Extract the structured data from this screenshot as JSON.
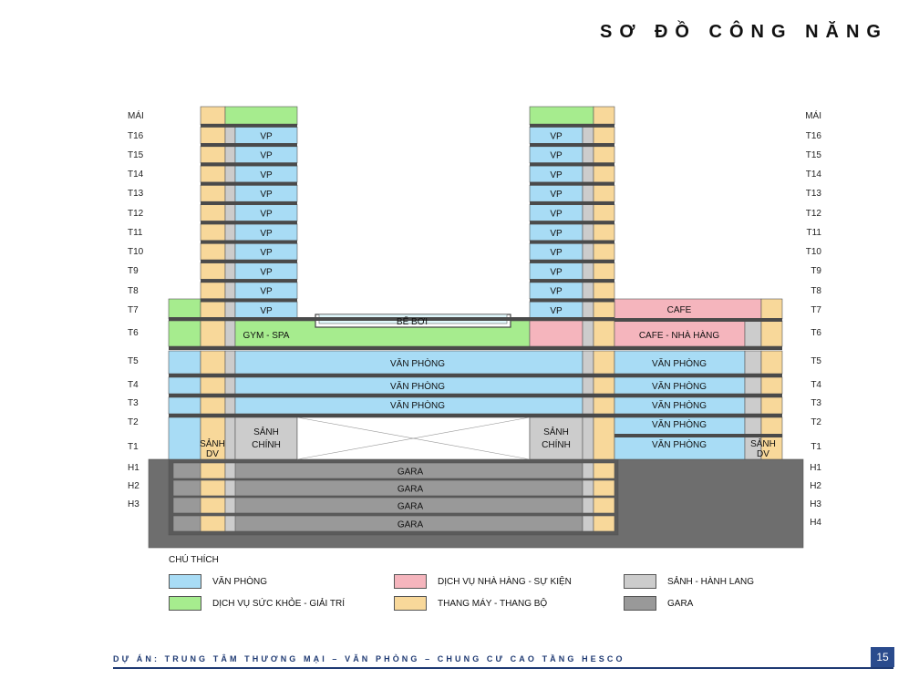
{
  "title": "SƠ ĐỒ CÔNG NĂNG",
  "floor_labels_left": [
    "MÁI",
    "T16",
    "T15",
    "T14",
    "T13",
    "T12",
    "T11",
    "T10",
    "T9",
    "T8",
    "T7",
    "T6",
    "T5",
    "T4",
    "T3",
    "T2",
    "T1",
    "H1",
    "H2",
    "H3"
  ],
  "floor_labels_right": [
    "MÁI",
    "T16",
    "T15",
    "T14",
    "T13",
    "T12",
    "T11",
    "T10",
    "T9",
    "T8",
    "T7",
    "T6",
    "T5",
    "T4",
    "T3",
    "T2",
    "T1",
    "H1",
    "H2",
    "H3",
    "H4"
  ],
  "spaces": {
    "vp": "VP",
    "gym_spa": "GYM - SPA",
    "pool": "BỂ BƠI",
    "van_phong": "VĂN PHÒNG",
    "cafe": "CAFE",
    "cafe_restaurant": "CAFE - NHÀ HÀNG",
    "main_lobby_line1": "SẢNH",
    "main_lobby_line2": "CHÍNH",
    "service_lobby_line1": "SẢNH",
    "service_lobby_line2": "DV",
    "gara": "GARA"
  },
  "colors": {
    "office": "#a8dcf5",
    "health": "#a6ec8e",
    "restaurant": "#f5b5bd",
    "lobby": "#cccccc",
    "core": "#f8d89a",
    "gara": "#999999"
  },
  "legend": {
    "title": "CHÚ THÍCH",
    "items": [
      {
        "label": "VĂN PHÒNG",
        "color": "#a8dcf5"
      },
      {
        "label": "DỊCH VỤ NHÀ HÀNG - SỰ KIỆN",
        "color": "#f5b5bd"
      },
      {
        "label": "SẢNH - HÀNH LANG",
        "color": "#cccccc"
      },
      {
        "label": "DỊCH VỤ SỨC KHỎE - GIẢI TRÍ",
        "color": "#a6ec8e"
      },
      {
        "label": "THANG MÁY - THANG BỘ",
        "color": "#f8d89a"
      },
      {
        "label": "GARA",
        "color": "#999999"
      }
    ]
  },
  "footer": {
    "project": "DỰ ÁN: TRUNG TÂM THƯƠNG MẠI – VĂN PHÒNG – CHUNG CƯ CAO TẦNG HESCO",
    "page": "15"
  }
}
